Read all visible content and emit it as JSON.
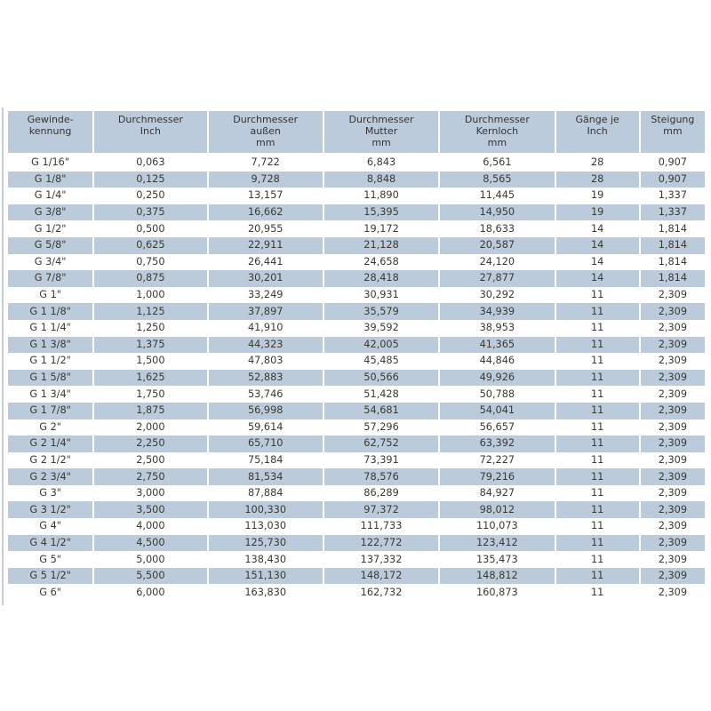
{
  "headers": [
    [
      "Gewinde-",
      "kennung",
      ""
    ],
    [
      "Durchmesser",
      "Inch",
      ""
    ],
    [
      "Durchmesser",
      "außen",
      "mm"
    ],
    [
      "Durchmesser",
      "Mutter",
      "mm"
    ],
    [
      "Durchmesser",
      "Kernloch",
      "mm"
    ],
    [
      "Gänge je",
      "Inch",
      ""
    ],
    [
      "Steigung",
      "mm",
      ""
    ]
  ],
  "rows": [
    [
      "G 1/16\"",
      "0,063",
      "7,722",
      "6,843",
      "6,561",
      "28",
      "0,907"
    ],
    [
      "G 1/8\"",
      "0,125",
      "9,728",
      "8,848",
      "8,565",
      "28",
      "0,907"
    ],
    [
      "G 1/4\"",
      "0,250",
      "13,157",
      "11,890",
      "11,445",
      "19",
      "1,337"
    ],
    [
      "G 3/8\"",
      "0,375",
      "16,662",
      "15,395",
      "14,950",
      "19",
      "1,337"
    ],
    [
      "G 1/2\"",
      "0,500",
      "20,955",
      "19,172",
      "18,633",
      "14",
      "1,814"
    ],
    [
      "G 5/8\"",
      "0,625",
      "22,911",
      "21,128",
      "20,587",
      "14",
      "1,814"
    ],
    [
      "G 3/4\"",
      "0,750",
      "26,441",
      "24,658",
      "24,120",
      "14",
      "1,814"
    ],
    [
      "G 7/8\"",
      "0,875",
      "30,201",
      "28,418",
      "27,877",
      "14",
      "1,814"
    ],
    [
      "G 1\"",
      "1,000",
      "33,249",
      "30,931",
      "30,292",
      "11",
      "2,309"
    ],
    [
      "G 1 1/8\"",
      "1,125",
      "37,897",
      "35,579",
      "34,939",
      "11",
      "2,309"
    ],
    [
      "G 1 1/4\"",
      "1,250",
      "41,910",
      "39,592",
      "38,953",
      "11",
      "2,309"
    ],
    [
      "G 1 3/8\"",
      "1,375",
      "44,323",
      "42,005",
      "41,365",
      "11",
      "2,309"
    ],
    [
      "G 1 1/2\"",
      "1,500",
      "47,803",
      "45,485",
      "44,846",
      "11",
      "2,309"
    ],
    [
      "G 1 5/8\"",
      "1,625",
      "52,883",
      "50,566",
      "49,926",
      "11",
      "2,309"
    ],
    [
      "G 1 3/4\"",
      "1,750",
      "53,746",
      "51,428",
      "50,788",
      "11",
      "2,309"
    ],
    [
      "G 1 7/8\"",
      "1,875",
      "56,998",
      "54,681",
      "54,041",
      "11",
      "2,309"
    ],
    [
      "G 2\"",
      "2,000",
      "59,614",
      "57,296",
      "56,657",
      "11",
      "2,309"
    ],
    [
      "G 2 1/4\"",
      "2,250",
      "65,710",
      "62,752",
      "63,392",
      "11",
      "2,309"
    ],
    [
      "G 2 1/2\"",
      "2,500",
      "75,184",
      "73,391",
      "72,227",
      "11",
      "2,309"
    ],
    [
      "G 2 3/4\"",
      "2,750",
      "81,534",
      "78,576",
      "79,216",
      "11",
      "2,309"
    ],
    [
      "G 3\"",
      "3,000",
      "87,884",
      "86,289",
      "84,927",
      "11",
      "2,309"
    ],
    [
      "G 3 1/2\"",
      "3,500",
      "100,330",
      "97,372",
      "98,012",
      "11",
      "2,309"
    ],
    [
      "G 4\"",
      "4,000",
      "113,030",
      "111,733",
      "110,073",
      "11",
      "2,309"
    ],
    [
      "G 4 1/2\"",
      "4,500",
      "125,730",
      "122,772",
      "123,412",
      "11",
      "2,309"
    ],
    [
      "G 5\"",
      "5,000",
      "138,430",
      "137,332",
      "135,473",
      "11",
      "2,309"
    ],
    [
      "G 5 1/2\"",
      "5,500",
      "151,130",
      "148,172",
      "148,812",
      "11",
      "2,309"
    ],
    [
      "G 6\"",
      "6,000",
      "163,830",
      "162,732",
      "160,873",
      "11",
      "2,309"
    ]
  ],
  "colors": {
    "header_bg": "#bccbdc",
    "alt_row_bg": "#bccbdc",
    "text": "#3a3a30"
  }
}
